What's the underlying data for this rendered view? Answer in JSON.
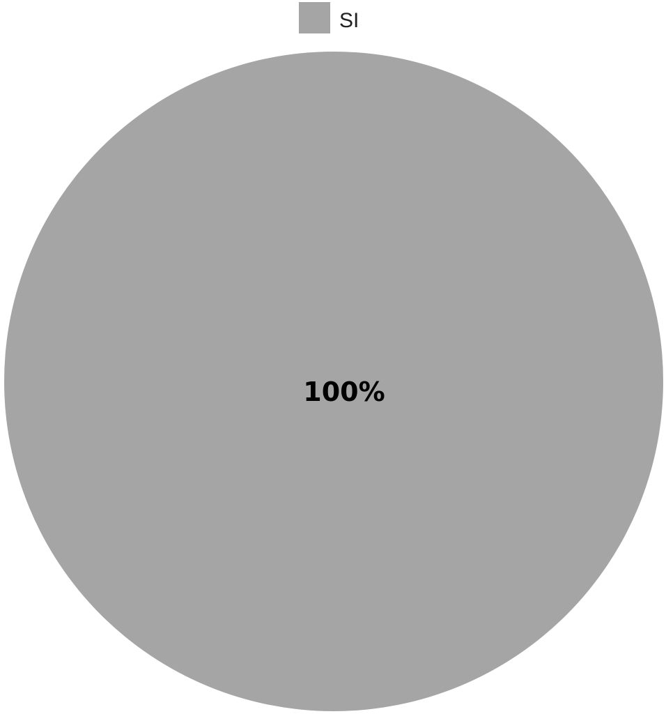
{
  "chart_data": {
    "type": "pie",
    "title": "",
    "legend_position": "top",
    "slices": [
      {
        "label": "SI",
        "value": 100,
        "value_label": "100%",
        "color": "#a5a5a5"
      }
    ]
  }
}
